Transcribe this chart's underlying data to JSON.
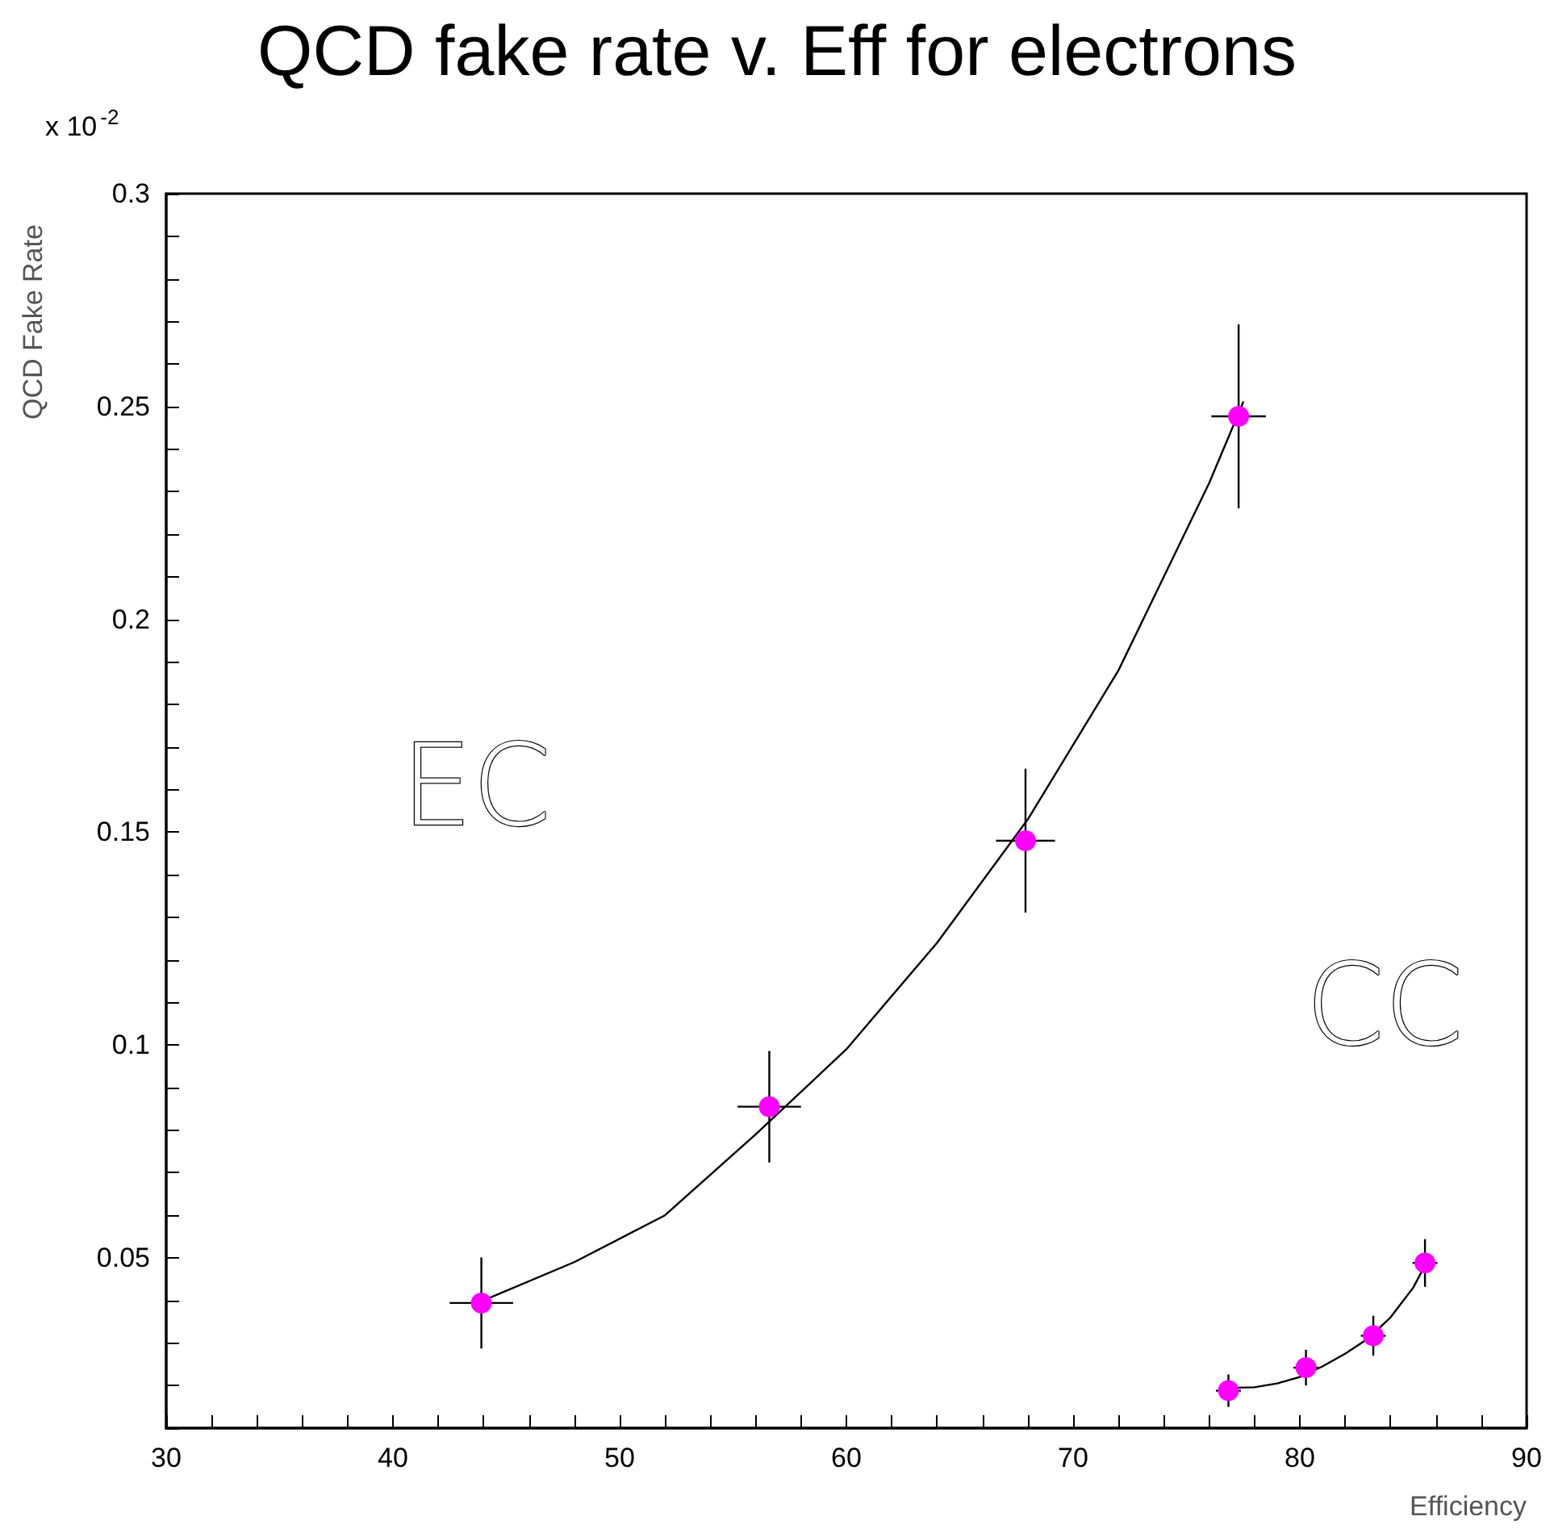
{
  "chart_data": {
    "type": "scatter",
    "title": "QCD fake rate v. Eff for electrons",
    "xlabel": "Efficiency",
    "ylabel": "QCD Fake Rate",
    "annotations": [
      "x 10$^{-2}$",
      "EC",
      "CC"
    ],
    "xlim": [
      30,
      90
    ],
    "ylim": [
      0.01,
      0.3
    ],
    "xticks": [
      30,
      {
        "value": 32,
        "label": null
      },
      {
        "value": 34,
        "label": null
      },
      {
        "value": 36,
        "label": null
      },
      {
        "value": 38,
        "label": null
      },
      40,
      {
        "value": 42,
        "label": null
      },
      {
        "value": 44,
        "label": null
      },
      {
        "value": 46,
        "label": null
      },
      {
        "value": 48,
        "label": null
      },
      50,
      {
        "value": 52,
        "label": null
      },
      {
        "value": 54,
        "label": null
      },
      {
        "value": 56,
        "label": null
      },
      {
        "value": 58,
        "label": null
      },
      60,
      {
        "value": 62,
        "label": null
      },
      {
        "value": 64,
        "label": null
      },
      {
        "value": 66,
        "label": null
      },
      {
        "value": 68,
        "label": null
      },
      70,
      {
        "value": 72,
        "label": null
      },
      {
        "value": 74,
        "label": null
      },
      {
        "value": 76,
        "label": null
      },
      {
        "value": 78,
        "label": null
      },
      80,
      {
        "value": 82,
        "label": null
      },
      {
        "value": 84,
        "label": null
      },
      {
        "value": 86,
        "label": null
      },
      {
        "value": 88,
        "label": null
      },
      90
    ],
    "yticks": [
      {
        "value": 0.01,
        "label": null
      },
      {
        "value": 0.02,
        "label": null
      },
      {
        "value": 0.03,
        "label": null
      },
      {
        "value": 0.04,
        "label": null
      },
      0.05,
      {
        "value": 0.06,
        "label": null
      },
      {
        "value": 0.07,
        "label": null
      },
      {
        "value": 0.08,
        "label": null
      },
      {
        "value": 0.09,
        "label": null
      },
      0.1,
      {
        "value": 0.11,
        "label": null
      },
      {
        "value": 0.12,
        "label": null
      },
      {
        "value": 0.13,
        "label": null
      },
      {
        "value": 0.14,
        "label": null
      },
      0.15,
      {
        "value": 0.16,
        "label": null
      },
      {
        "value": 0.17,
        "label": null
      },
      {
        "value": 0.18,
        "label": null
      },
      {
        "value": 0.19,
        "label": null
      },
      0.2,
      {
        "value": 0.21,
        "label": null
      },
      {
        "value": 0.22,
        "label": null
      },
      {
        "value": 0.23,
        "label": null
      },
      {
        "value": 0.24,
        "label": null
      },
      0.25,
      {
        "value": 0.26,
        "label": null
      },
      {
        "value": 0.27,
        "label": null
      },
      {
        "value": 0.28,
        "label": null
      },
      {
        "value": 0.29,
        "label": null
      },
      0.3
    ],
    "grid": false,
    "marker": "circle",
    "series": [
      {
        "type": "line",
        "color": "#000000",
        "marker": "none",
        "x": [
          44,
          48,
          52,
          56,
          60,
          64,
          68,
          72,
          76,
          77.5
        ],
        "values": [
          0.04,
          0.049,
          0.06,
          0.079,
          0.099,
          0.124,
          0.153,
          0.188,
          0.232,
          0.251
        ]
      },
      {
        "type": "line",
        "color": "#000000",
        "marker": "none",
        "x": [
          77.2,
          78,
          79,
          80,
          81,
          82,
          83,
          84,
          85,
          85.7
        ],
        "values": [
          0.0195,
          0.0196,
          0.0205,
          0.022,
          0.0245,
          0.0275,
          0.031,
          0.036,
          0.043,
          0.05
        ]
      },
      {
        "color": "#ff00ff",
        "x": [
          43.9,
          56.6,
          67.9,
          77.3
        ],
        "values": [
          0.0394,
          0.0855,
          0.148,
          0.2477
        ],
        "errors": [
          0.0107,
          0.0131,
          0.0169,
          0.0216
        ],
        "xerrors": [
          1.4,
          1.4,
          1.3,
          1.2
        ]
      },
      {
        "color": "#ff00ff",
        "x": [
          76.85,
          80.27,
          83.24,
          85.52
        ],
        "values": [
          0.0188,
          0.0242,
          0.0317,
          0.0488
        ],
        "errors": [
          0.0038,
          0.0042,
          0.0047,
          0.0056
        ],
        "xerrors": [
          0.55,
          0.55,
          0.55,
          0.55
        ]
      }
    ]
  }
}
